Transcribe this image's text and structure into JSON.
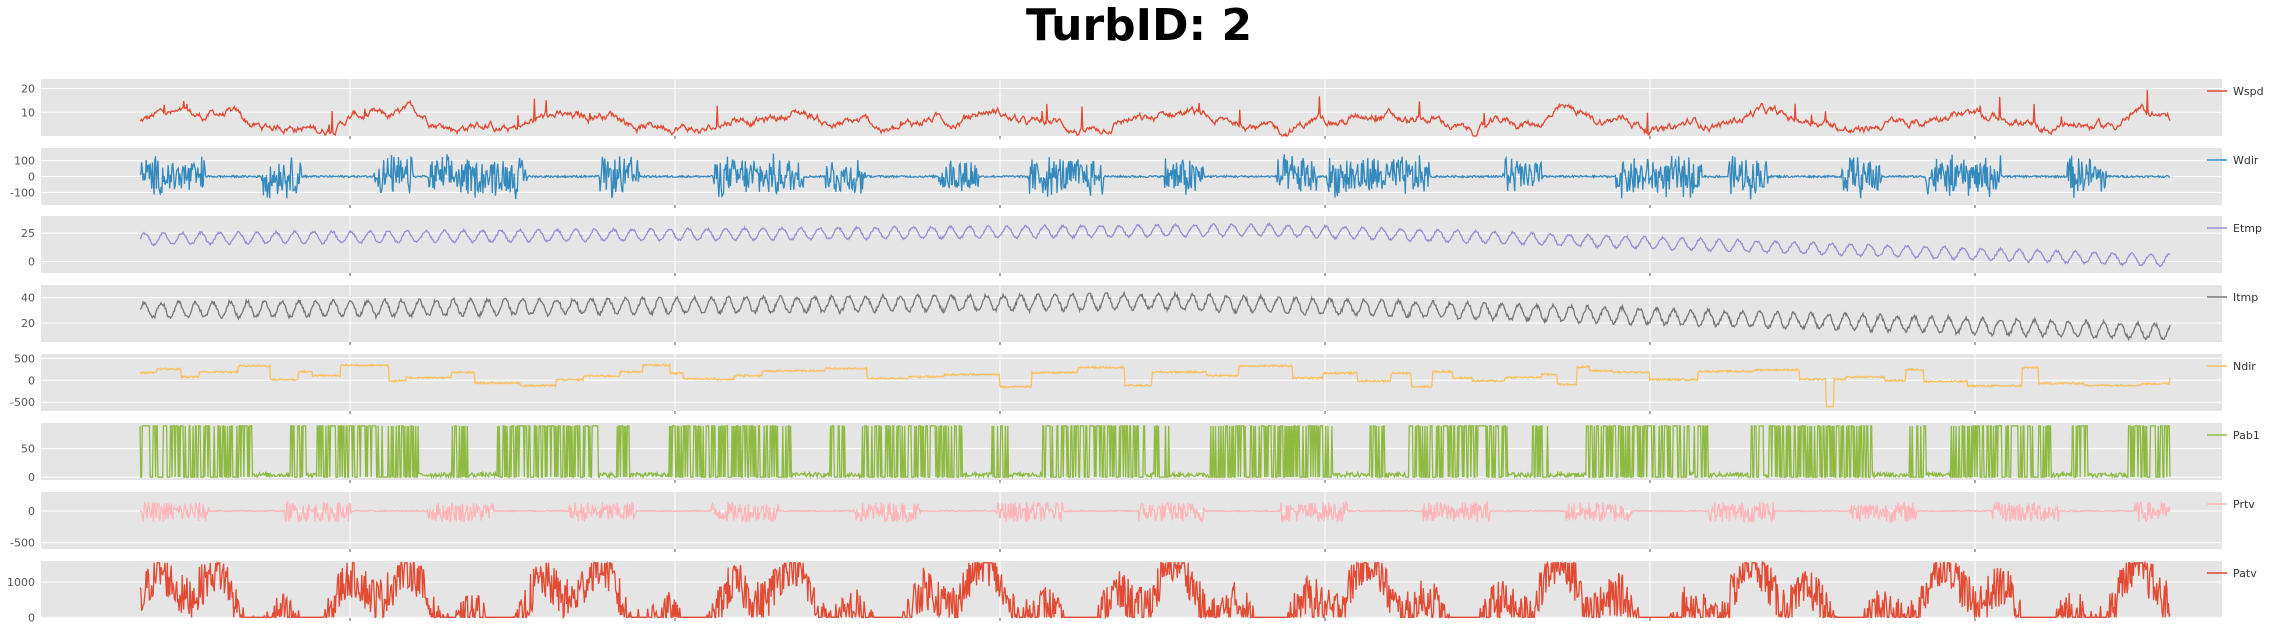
{
  "chart_data": {
    "type": "line",
    "title": "TurbID: 2",
    "xlabel": "",
    "ylabel": "",
    "grid": true,
    "legend_placement": "right",
    "background": "#e5e5e5",
    "grid_color": "#ffffff",
    "n_points": 2600,
    "x_ticks_count": 6,
    "series": [
      {
        "name": "Wspd",
        "color": "#e24a33",
        "ylim": [
          0,
          24
        ],
        "yticks": [
          10,
          20
        ],
        "ytick_labels": [
          "10",
          "20"
        ],
        "profile": "wind_speed",
        "base": 6,
        "amp": 6,
        "min": 0,
        "max": 24
      },
      {
        "name": "Wdir",
        "color": "#348abd",
        "ylim": [
          -180,
          180
        ],
        "yticks": [
          -100,
          0,
          100
        ],
        "ytick_labels": [
          "-100",
          "0",
          "100"
        ],
        "profile": "spiky",
        "base": 0,
        "amp": 150,
        "min": -180,
        "max": 180
      },
      {
        "name": "Etmp",
        "color": "#988ed5",
        "ylim": [
          -10,
          40
        ],
        "yticks": [
          0,
          25
        ],
        "ytick_labels": [
          "0",
          "25"
        ],
        "profile": "temp_env",
        "base": 22,
        "amp": 5,
        "min": -8,
        "max": 35
      },
      {
        "name": "Itmp",
        "color": "#777777",
        "ylim": [
          5,
          50
        ],
        "yticks": [
          20,
          40
        ],
        "ytick_labels": [
          "20",
          "40"
        ],
        "profile": "temp_int",
        "base": 33,
        "amp": 6,
        "min": 7,
        "max": 48
      },
      {
        "name": "Ndir",
        "color": "#fbc15e",
        "ylim": [
          -700,
          600
        ],
        "yticks": [
          -500,
          0,
          500
        ],
        "ytick_labels": [
          "-500",
          "0",
          "500"
        ],
        "profile": "steps",
        "base": 0,
        "amp": 300,
        "min": -700,
        "max": 550
      },
      {
        "name": "Pab1",
        "color": "#8eba42",
        "ylim": [
          -5,
          95
        ],
        "yticks": [
          0,
          50
        ],
        "ytick_labels": [
          "0",
          "50"
        ],
        "profile": "binary",
        "base": 0,
        "amp": 90,
        "min": 0,
        "max": 90
      },
      {
        "name": "Prtv",
        "color": "#ffb5b8",
        "ylim": [
          -600,
          300
        ],
        "yticks": [
          -500,
          0
        ],
        "ytick_labels": [
          "-500",
          "0"
        ],
        "profile": "reactive",
        "base": 0,
        "amp": 150,
        "min": -550,
        "max": 250
      },
      {
        "name": "Patv",
        "color": "#e24a33",
        "ylim": [
          -20,
          1600
        ],
        "yticks": [
          0,
          1000
        ],
        "ytick_labels": [
          "0",
          "1000"
        ],
        "profile": "power",
        "base": 0,
        "amp": 1500,
        "min": 0,
        "max": 1550
      }
    ]
  }
}
